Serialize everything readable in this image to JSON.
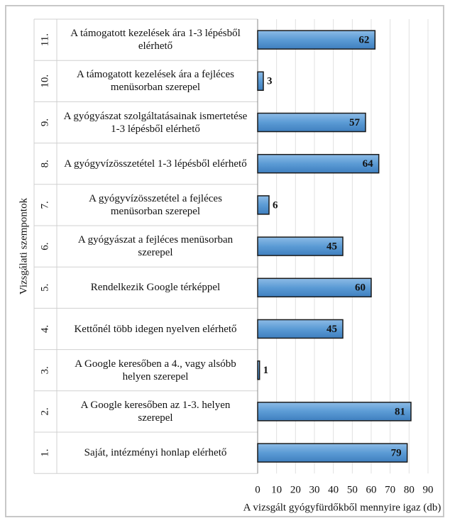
{
  "chart_data": {
    "type": "bar",
    "orientation": "horizontal",
    "y_axis_label": "Vizsgálati szempontok",
    "x_axis_label": "A vizsgált gyógyfürdőkből mennyire igaz (db)",
    "category_numbers": [
      "11.",
      "10.",
      "9.",
      "8.",
      "7.",
      "6.",
      "5.",
      "4.",
      "3.",
      "2.",
      "1."
    ],
    "categories": [
      "A támogatott kezelések ára 1-3 lépésből elérhető",
      "A támogatott kezelések ára a fejléces menüsorban szerepel",
      "A gyógyászat szolgáltatásainak ismertetése 1-3 lépésből elérhető",
      "A gyógyvízösszetétel 1-3 lépésből elérhető",
      "A gyógyvízösszetétel a fejléces menüsorban szerepel",
      "A gyógyászat a fejléces menüsorban szerepel",
      "Rendelkezik Google térképpel",
      "Kettőnél több idegen nyelven elérhető",
      "A Google keresőben a 4., vagy alsóbb helyen szerepel",
      "A Google keresőben az 1-3. helyen szerepel",
      "Saját, intézményi honlap elérhető"
    ],
    "values": [
      62,
      3,
      57,
      64,
      6,
      45,
      60,
      45,
      1,
      81,
      79
    ],
    "color": "#5b9bd5",
    "xlim": [
      0,
      90
    ],
    "xticks": [
      0,
      10,
      20,
      30,
      40,
      50,
      60,
      70,
      80,
      90
    ],
    "grid": true
  }
}
